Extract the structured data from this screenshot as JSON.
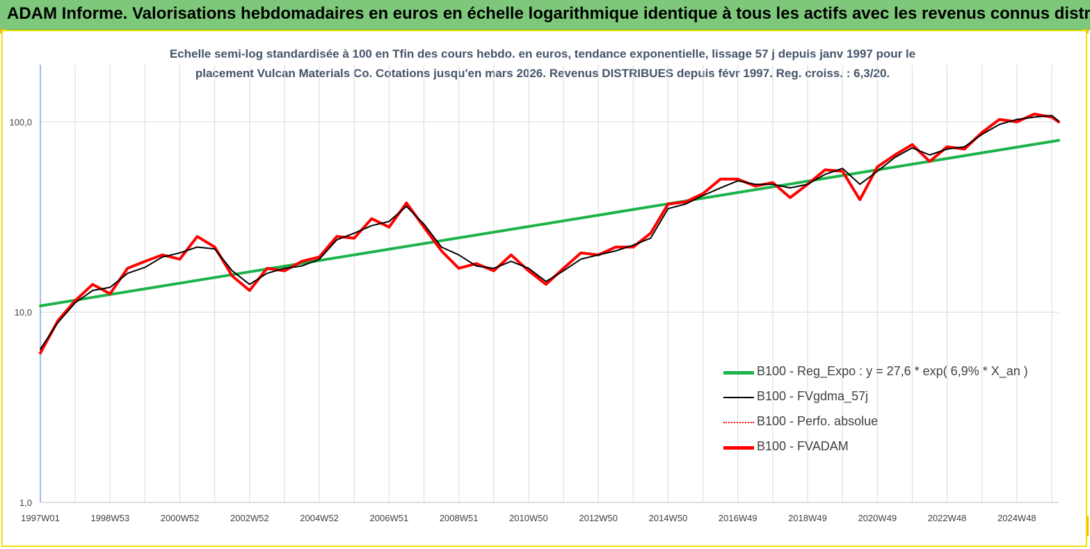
{
  "header": {
    "title": "ADAM Informe. Valorisations hebdomadaires en euros en échelle logarithmique identique à tous les actifs avec les revenus connus distribués"
  },
  "chart_data": {
    "type": "line",
    "subtitle_line1": "Echelle semi-log standardisée à 100 en Tfin des cours hebdo. en euros, tendance exponentielle, lissage 57 j depuis janv 1997 pour le",
    "subtitle_line2": "placement Vulcan Materials Co. Cotations jusqu'en mars 2026. Revenus DISTRIBUES depuis févr 1997. Reg. croiss. : 6,3/20.",
    "y_scale": "log",
    "ylim": [
      1,
      200
    ],
    "y_ticks": [
      {
        "value": 1,
        "label": "1,0"
      },
      {
        "value": 10,
        "label": "10,0"
      },
      {
        "value": 100,
        "label": "100,0"
      }
    ],
    "xlim": [
      1997.0,
      2026.2
    ],
    "x_ticks": [
      {
        "value": 1997.0,
        "label": "1997W01"
      },
      {
        "value": 1999.0,
        "label": "1998W53"
      },
      {
        "value": 2001.0,
        "label": "2000W52"
      },
      {
        "value": 2003.0,
        "label": "2002W52"
      },
      {
        "value": 2005.0,
        "label": "2004W52"
      },
      {
        "value": 2007.0,
        "label": "2006W51"
      },
      {
        "value": 2009.0,
        "label": "2008W51"
      },
      {
        "value": 2011.0,
        "label": "2010W50"
      },
      {
        "value": 2013.0,
        "label": "2012W50"
      },
      {
        "value": 2015.0,
        "label": "2014W50"
      },
      {
        "value": 2017.0,
        "label": "2016W49"
      },
      {
        "value": 2019.0,
        "label": "2018W49"
      },
      {
        "value": 2021.0,
        "label": "2020W49"
      },
      {
        "value": 2023.0,
        "label": "2022W48"
      },
      {
        "value": 2025.0,
        "label": "2024W48"
      }
    ],
    "grid": true,
    "legend_position": "bottom-right",
    "series": [
      {
        "name": "B100 - Reg_Expo : y = 27,6 * exp( 6,9% *  X_an )",
        "color": "#1db34a",
        "style": "thick",
        "x": [
          1997.0,
          2026.2
        ],
        "y": [
          10.8,
          80.0
        ]
      },
      {
        "name": "B100 - FVgdma_57j",
        "color": "#000000",
        "style": "thin",
        "x": [
          1997.0,
          1997.5,
          1998.0,
          1998.5,
          1999.0,
          1999.5,
          2000.0,
          2000.5,
          2001.0,
          2001.5,
          2002.0,
          2002.5,
          2003.0,
          2003.5,
          2004.0,
          2004.5,
          2005.0,
          2005.5,
          2006.0,
          2006.5,
          2007.0,
          2007.5,
          2008.0,
          2008.5,
          2009.0,
          2009.5,
          2010.0,
          2010.5,
          2011.0,
          2011.5,
          2012.0,
          2012.5,
          2013.0,
          2013.5,
          2014.0,
          2014.5,
          2015.0,
          2015.5,
          2016.0,
          2016.5,
          2017.0,
          2017.5,
          2018.0,
          2018.5,
          2019.0,
          2019.5,
          2020.0,
          2020.5,
          2021.0,
          2021.5,
          2022.0,
          2022.5,
          2023.0,
          2023.5,
          2024.0,
          2024.5,
          2025.0,
          2025.5,
          2026.0,
          2026.2
        ],
        "y": [
          6.4,
          8.8,
          11.2,
          13.0,
          13.5,
          16.0,
          17.2,
          19.5,
          20.5,
          22.0,
          21.5,
          16.5,
          14.0,
          16.0,
          17.0,
          17.5,
          19.0,
          24.0,
          26.0,
          28.5,
          30.0,
          36.0,
          29.0,
          22.0,
          20.0,
          17.5,
          17.0,
          18.5,
          17.0,
          14.5,
          16.5,
          19.0,
          20.0,
          21.0,
          22.5,
          24.5,
          35.0,
          37.0,
          41.0,
          45.0,
          49.0,
          47.0,
          47.0,
          45.0,
          47.0,
          53.0,
          57.0,
          47.0,
          55.0,
          65.0,
          73.0,
          67.0,
          72.0,
          74.0,
          86.0,
          97.0,
          103.0,
          106.0,
          108.0,
          101.0
        ]
      },
      {
        "name": "B100 - Perfo. absolue",
        "color": "#ff0000",
        "style": "dotted",
        "x": [
          1997.0,
          1997.5,
          1998.0,
          1998.5,
          1999.0,
          1999.5,
          2000.0,
          2000.5,
          2001.0,
          2001.5,
          2002.0,
          2002.5,
          2003.0,
          2003.5,
          2004.0,
          2004.5,
          2005.0,
          2005.5,
          2006.0,
          2006.5,
          2007.0,
          2007.5,
          2008.0,
          2008.5,
          2009.0,
          2009.5,
          2010.0,
          2010.5,
          2011.0,
          2011.5,
          2012.0,
          2012.5,
          2013.0,
          2013.5,
          2014.0,
          2014.5,
          2015.0,
          2015.5,
          2016.0,
          2016.5,
          2017.0,
          2017.5,
          2018.0,
          2018.5,
          2019.0,
          2019.5,
          2020.0,
          2020.5,
          2021.0,
          2021.5,
          2022.0,
          2022.5,
          2023.0,
          2023.5,
          2024.0,
          2024.5,
          2025.0,
          2025.5,
          2026.0,
          2026.2
        ],
        "y": [
          6.1,
          9.0,
          11.5,
          14.0,
          12.5,
          17.0,
          18.5,
          20.0,
          19.0,
          25.0,
          22.0,
          15.5,
          13.0,
          17.0,
          16.5,
          18.5,
          19.5,
          25.0,
          24.5,
          31.0,
          28.0,
          37.5,
          28.0,
          21.0,
          17.0,
          18.0,
          16.5,
          20.0,
          16.5,
          14.0,
          17.0,
          20.5,
          20.0,
          22.0,
          22.0,
          26.0,
          37.0,
          38.0,
          42.0,
          50.0,
          50.0,
          46.0,
          48.0,
          40.0,
          47.0,
          56.0,
          55.0,
          39.0,
          58.0,
          67.0,
          76.0,
          62.0,
          74.0,
          72.0,
          88.0,
          103.0,
          100.0,
          110.0,
          106.0,
          100.0
        ]
      },
      {
        "name": "B100 - FVADAM",
        "color": "#ff0000",
        "style": "thick",
        "x": [
          1997.0,
          1997.5,
          1998.0,
          1998.5,
          1999.0,
          1999.5,
          2000.0,
          2000.5,
          2001.0,
          2001.5,
          2002.0,
          2002.5,
          2003.0,
          2003.5,
          2004.0,
          2004.5,
          2005.0,
          2005.5,
          2006.0,
          2006.5,
          2007.0,
          2007.5,
          2008.0,
          2008.5,
          2009.0,
          2009.5,
          2010.0,
          2010.5,
          2011.0,
          2011.5,
          2012.0,
          2012.5,
          2013.0,
          2013.5,
          2014.0,
          2014.5,
          2015.0,
          2015.5,
          2016.0,
          2016.5,
          2017.0,
          2017.5,
          2018.0,
          2018.5,
          2019.0,
          2019.5,
          2020.0,
          2020.5,
          2021.0,
          2021.5,
          2022.0,
          2022.5,
          2023.0,
          2023.5,
          2024.0,
          2024.5,
          2025.0,
          2025.5,
          2026.0,
          2026.2
        ],
        "y": [
          6.1,
          9.0,
          11.5,
          14.0,
          12.5,
          17.0,
          18.5,
          20.0,
          19.0,
          25.0,
          22.0,
          15.5,
          13.0,
          17.0,
          16.5,
          18.5,
          19.5,
          25.0,
          24.5,
          31.0,
          28.0,
          37.5,
          28.0,
          21.0,
          17.0,
          18.0,
          16.5,
          20.0,
          16.5,
          14.0,
          17.0,
          20.5,
          20.0,
          22.0,
          22.0,
          26.0,
          37.0,
          38.0,
          42.0,
          50.0,
          50.0,
          46.0,
          48.0,
          40.0,
          47.0,
          56.0,
          55.0,
          39.0,
          58.0,
          67.0,
          76.0,
          62.0,
          74.0,
          72.0,
          88.0,
          103.0,
          100.0,
          110.0,
          106.0,
          100.0
        ]
      }
    ]
  },
  "colors": {
    "banner": "#7dc87a",
    "frame_border": "#f0e000",
    "corner_marks": "#f2b400",
    "subtitle_text": "#44546a",
    "gridline": "#d9d9d9",
    "y_axis": "#4472c4"
  }
}
